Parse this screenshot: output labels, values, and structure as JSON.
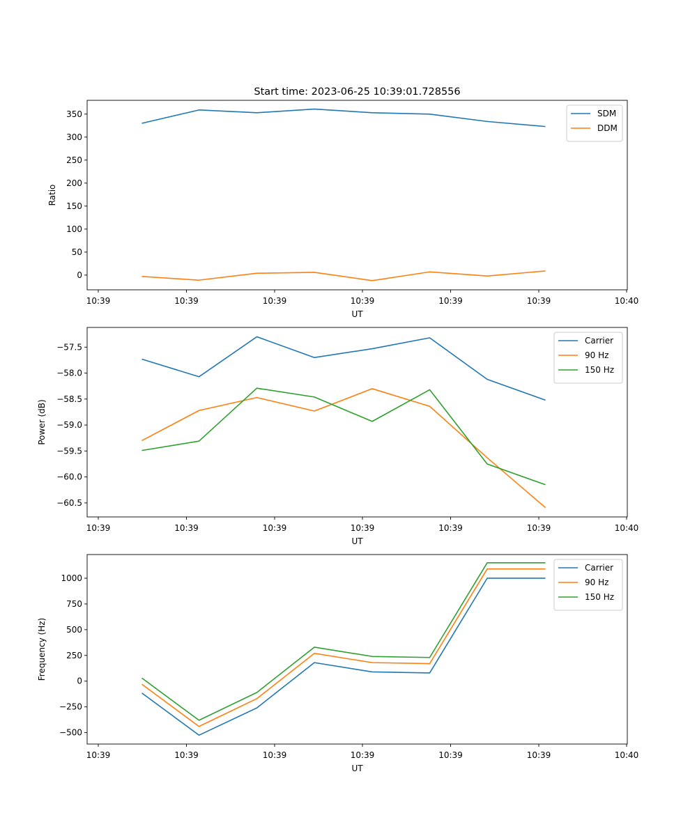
{
  "figure": {
    "title": "Start time: 2023-06-25 10:39:01.728556"
  },
  "chart_data": [
    {
      "type": "line",
      "ylabel": "Ratio",
      "xlabel": "UT",
      "x_tick_labels": [
        "10:39",
        "10:39",
        "10:39",
        "10:39",
        "10:39",
        "10:39",
        "10:40"
      ],
      "y_ticks": [
        0,
        50,
        100,
        150,
        200,
        250,
        300,
        350
      ],
      "ylim": [
        -32,
        380
      ],
      "legend_placement": "top-right",
      "series": [
        {
          "name": "SDM",
          "color": "#1f77b4",
          "values": [
            330,
            359,
            353,
            361,
            353,
            350,
            334,
            323
          ]
        },
        {
          "name": "DDM",
          "color": "#ff7f0e",
          "values": [
            -3,
            -11,
            4,
            6,
            -12,
            7,
            -2,
            9
          ]
        }
      ]
    },
    {
      "type": "line",
      "ylabel": "Power (dB)",
      "xlabel": "UT",
      "x_tick_labels": [
        "10:39",
        "10:39",
        "10:39",
        "10:39",
        "10:39",
        "10:39",
        "10:40"
      ],
      "y_ticks": [
        -60.5,
        -60.0,
        -59.5,
        -59.0,
        -58.5,
        -58.0,
        -57.5
      ],
      "y_tick_labels": [
        "−60.5",
        "−60.0",
        "−59.5",
        "−59.0",
        "−58.5",
        "−58.0",
        "−57.5"
      ],
      "ylim": [
        -60.77,
        -57.12
      ],
      "legend_placement": "top-right",
      "series": [
        {
          "name": "Carrier",
          "color": "#1f77b4",
          "values": [
            -57.73,
            -58.07,
            -57.3,
            -57.7,
            -57.53,
            -57.32,
            -58.12,
            -58.52
          ]
        },
        {
          "name": "90 Hz",
          "color": "#ff7f0e",
          "values": [
            -59.3,
            -58.72,
            -58.47,
            -58.73,
            -58.3,
            -58.64,
            -59.63,
            -60.59
          ]
        },
        {
          "name": "150 Hz",
          "color": "#2ca02c",
          "values": [
            -59.49,
            -59.31,
            -58.29,
            -58.46,
            -58.93,
            -58.32,
            -59.75,
            -60.15
          ]
        }
      ]
    },
    {
      "type": "line",
      "ylabel": "Frequency (Hz)",
      "xlabel": "UT",
      "x_tick_labels": [
        "10:39",
        "10:39",
        "10:39",
        "10:39",
        "10:39",
        "10:39",
        "10:40"
      ],
      "y_ticks": [
        -500,
        -250,
        0,
        250,
        500,
        750,
        1000
      ],
      "y_tick_labels": [
        "−500",
        "−250",
        "0",
        "250",
        "500",
        "750",
        "1000"
      ],
      "ylim": [
        -611,
        1230
      ],
      "legend_placement": "top-right",
      "series": [
        {
          "name": "Carrier",
          "color": "#1f77b4",
          "values": [
            -115,
            -525,
            -260,
            180,
            90,
            80,
            1000,
            1000
          ]
        },
        {
          "name": "90 Hz",
          "color": "#ff7f0e",
          "values": [
            -30,
            -440,
            -170,
            270,
            180,
            170,
            1090,
            1090
          ]
        },
        {
          "name": "150 Hz",
          "color": "#2ca02c",
          "values": [
            30,
            -380,
            -110,
            330,
            240,
            230,
            1150,
            1150
          ]
        }
      ]
    }
  ]
}
